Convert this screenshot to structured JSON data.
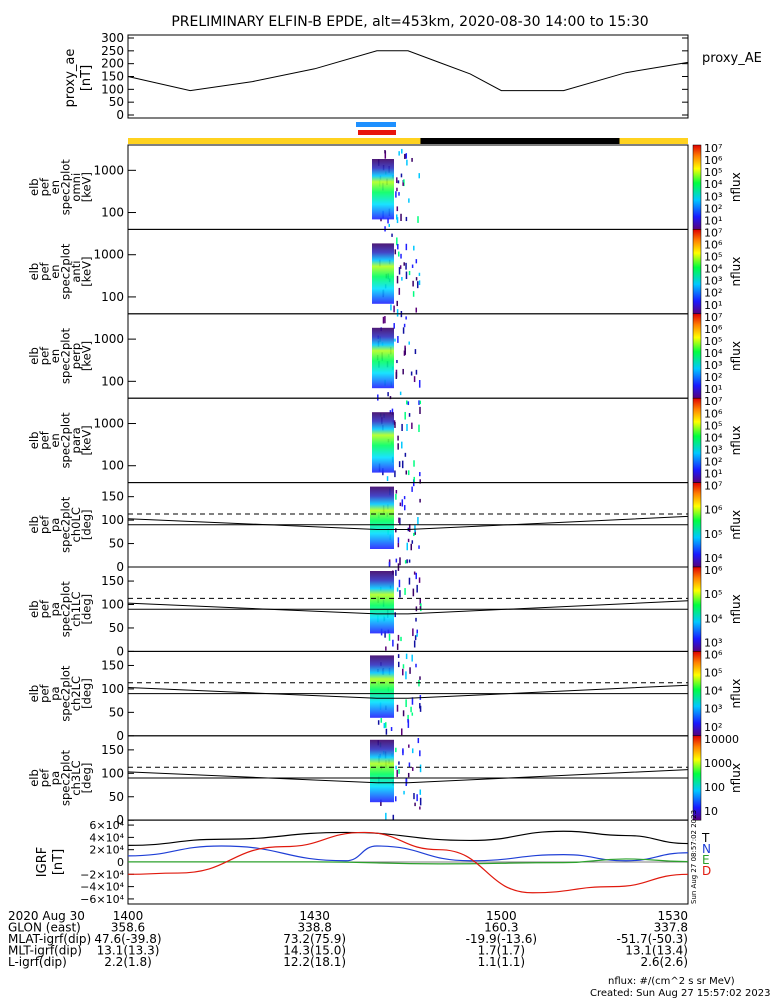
{
  "title": "PRELIMINARY ELFIN-B EPDE, alt=453km, 2020-08-30 14:00 to 15:30",
  "proxy": {
    "label": "proxy_AE",
    "ylabel1": "proxy_ae",
    "ylabel2": "[nT]",
    "ticks": [
      "0",
      "50",
      "100",
      "150",
      "200",
      "250",
      "300"
    ]
  },
  "panels": [
    {
      "id": "omni",
      "ylabel": [
        "elb",
        "pef",
        "en",
        "spec2plot",
        "omni",
        "[keV]"
      ],
      "ticks": [
        "100",
        "1000"
      ],
      "cbar": [
        "10⁷",
        "10⁶",
        "10⁵",
        "10⁴",
        "10³",
        "10²",
        "10¹"
      ],
      "cbar_label": "nflux"
    },
    {
      "id": "anti",
      "ylabel": [
        "elb",
        "pef",
        "en",
        "spec2plot",
        "anti",
        "[keV]"
      ],
      "ticks": [
        "100",
        "1000"
      ],
      "cbar": [
        "10⁷",
        "10⁶",
        "10⁵",
        "10⁴",
        "10³",
        "10²",
        "10¹"
      ],
      "cbar_label": "nflux"
    },
    {
      "id": "perp",
      "ylabel": [
        "elb",
        "pef",
        "en",
        "spec2plot",
        "perp",
        "[keV]"
      ],
      "ticks": [
        "100",
        "1000"
      ],
      "cbar": [
        "10⁷",
        "10⁶",
        "10⁵",
        "10⁴",
        "10³",
        "10²",
        "10¹"
      ],
      "cbar_label": "nflux"
    },
    {
      "id": "para",
      "ylabel": [
        "elb",
        "pef",
        "en",
        "spec2plot",
        "para",
        "[keV]"
      ],
      "ticks": [
        "100",
        "1000"
      ],
      "cbar": [
        "10⁷",
        "10⁶",
        "10⁵",
        "10⁴",
        "10³",
        "10²",
        "10¹"
      ],
      "cbar_label": "nflux"
    },
    {
      "id": "ch0LC",
      "ylabel": [
        "elb",
        "pef",
        "pa",
        "spec2plot",
        "ch0LC",
        "[deg]"
      ],
      "ticks": [
        "0",
        "50",
        "100",
        "150"
      ],
      "cbar": [
        "10⁷",
        "10⁶",
        "10⁵",
        "10⁴"
      ],
      "cbar_label": "nflux"
    },
    {
      "id": "ch1LC",
      "ylabel": [
        "elb",
        "pef",
        "pa",
        "spec2plot",
        "ch1LC",
        "[deg]"
      ],
      "ticks": [
        "0",
        "50",
        "100",
        "150"
      ],
      "cbar": [
        "10⁶",
        "10⁵",
        "10⁴",
        "10³"
      ],
      "cbar_label": "nflux"
    },
    {
      "id": "ch2LC",
      "ylabel": [
        "elb",
        "pef",
        "pa",
        "spec2plot",
        "ch2LC",
        "[deg]"
      ],
      "ticks": [
        "0",
        "50",
        "100",
        "150"
      ],
      "cbar": [
        "10⁶",
        "10⁵",
        "10⁴",
        "10³",
        "10²"
      ],
      "cbar_label": "nflux"
    },
    {
      "id": "ch3LC",
      "ylabel": [
        "elb",
        "pef",
        "pa",
        "spec2plot",
        "ch3LC",
        "[deg]"
      ],
      "ticks": [
        "0",
        "50",
        "100",
        "150"
      ],
      "cbar": [
        "10000",
        "1000",
        "100",
        "10"
      ],
      "cbar_label": "nflux"
    }
  ],
  "igrf": {
    "ylabel1": "IGRF",
    "ylabel2": "[nT]",
    "ticks": [
      "6×10⁴",
      "4×10⁴",
      "2×10⁴",
      "0",
      "−2×10⁴",
      "−4×10⁴",
      "−6×10⁴"
    ],
    "legend": [
      {
        "label": "T",
        "color": "#000000"
      },
      {
        "label": "N",
        "color": "#1f3fd6"
      },
      {
        "label": "E",
        "color": "#2ca02c"
      },
      {
        "label": "D",
        "color": "#e0190d"
      }
    ],
    "stamp": "Sun Aug 27 08:57:02 2023"
  },
  "orbit_table": {
    "rows": [
      {
        "label": "2020 Aug 30",
        "values": [
          "1400",
          "1430",
          "1500",
          "1530"
        ]
      },
      {
        "label": "GLON (east)",
        "values": [
          "358.6",
          "338.8",
          "160.3",
          "337.8"
        ]
      },
      {
        "label": "MLAT-igrf(dip)",
        "values": [
          "47.6(-39.8)",
          "73.2(75.9)",
          "-19.9(-13.6)",
          "-51.7(-50.3)"
        ]
      },
      {
        "label": "MLT-igrf(dip)",
        "values": [
          "13.1(13.3)",
          "14.3(15.0)",
          "1.7(1.7)",
          "13.1(13.4)"
        ]
      },
      {
        "label": "L-igrf(dip)",
        "values": [
          "2.2(1.8)",
          "12.2(18.1)",
          "1.1(1.1)",
          "2.6(2.6)"
        ]
      }
    ]
  },
  "footer": {
    "units": "nflux: #/(cm^2 s sr MeV)",
    "created": "Created: Sun Aug 27 15:57:02 2023"
  },
  "chart_data": {
    "type": "line",
    "time_range": [
      "2020-08-30 14:00",
      "2020-08-30 15:30"
    ],
    "x_tick_labels": [
      "1400",
      "1430",
      "1500",
      "1530"
    ],
    "proxy_ae": {
      "ylim": [
        0,
        300
      ],
      "time_min": [
        0,
        10,
        20,
        30,
        40,
        45,
        50,
        55,
        60,
        70,
        80,
        85,
        90
      ],
      "values": [
        150,
        95,
        130,
        180,
        250,
        250,
        205,
        160,
        95,
        95,
        165,
        185,
        205
      ]
    },
    "science_zone_minutes": [
      40,
      47
    ],
    "sunlight_bar": {
      "segments": [
        {
          "start": 0,
          "end": 47,
          "state": "sunlight"
        },
        {
          "start": 47,
          "end": 79,
          "state": "eclipse"
        },
        {
          "start": 79,
          "end": 90,
          "state": "sunlight"
        }
      ]
    },
    "pitch_angle_lines": {
      "ylim": [
        0,
        180
      ],
      "solid_time_min": [
        0,
        40,
        45,
        90
      ],
      "solid_values": [
        103,
        80,
        80,
        108
      ],
      "dashed_time_min": [
        0,
        90
      ],
      "dashed_values": [
        113,
        113
      ]
    },
    "igrf_field": {
      "ylim": [
        -65000,
        65000
      ],
      "series": [
        {
          "name": "T",
          "time_min": [
            0,
            15,
            35,
            55,
            70,
            80,
            90
          ],
          "values": [
            27000,
            37000,
            48000,
            35000,
            50000,
            43000,
            30000
          ]
        },
        {
          "name": "N",
          "time_min": [
            0,
            15,
            35,
            40,
            55,
            70,
            80,
            90
          ],
          "values": [
            10000,
            26000,
            2000,
            26000,
            2000,
            12000,
            2000,
            15000
          ]
        },
        {
          "name": "E",
          "time_min": [
            0,
            30,
            50,
            70,
            80,
            90
          ],
          "values": [
            200,
            200,
            -3000,
            -1000,
            5000,
            600
          ]
        },
        {
          "name": "D",
          "time_min": [
            0,
            8,
            25,
            38,
            50,
            65,
            78,
            90
          ],
          "values": [
            -20000,
            -18000,
            25000,
            48000,
            20000,
            -50000,
            -40000,
            -20000
          ]
        }
      ]
    }
  }
}
